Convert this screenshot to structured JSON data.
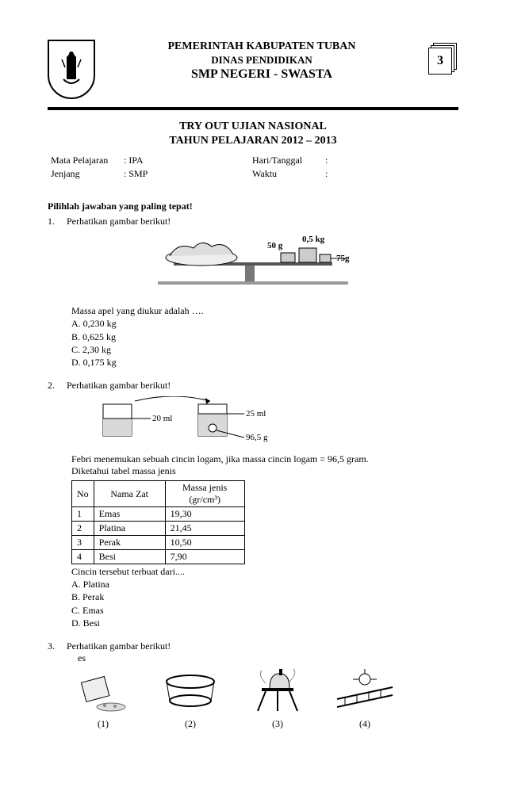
{
  "header": {
    "line1": "PEMERINTAH KABUPATEN TUBAN",
    "line2": "DINAS PENDIDIKAN",
    "line3": "SMP NEGERI - SWASTA",
    "page_number": "3"
  },
  "subheader": {
    "line1": "TRY OUT  UJIAN NASIONAL",
    "line2": "TAHUN PELAJARAN 2012 – 2013"
  },
  "meta": {
    "mata_pelajaran_label": "Mata Pelajaran",
    "mata_pelajaran_value": ": IPA",
    "jenjang_label": "Jenjang",
    "jenjang_value": ": SMP",
    "hari_label": "Hari/Tanggal",
    "hari_value": ":",
    "waktu_label": "Waktu",
    "waktu_value": ":"
  },
  "instruction": "Pilihlah jawaban yang paling tepat!",
  "q1": {
    "num": "1.",
    "text": "Perhatikan gambar berikut!",
    "fig": {
      "label_50g": "50 g",
      "label_05kg": "0,5 kg",
      "label_75g": "75g"
    },
    "prompt": "Massa apel yang diukur  adalah ….",
    "a": "A. 0,230 kg",
    "b": "B. 0,625 kg",
    "c": "C. 2,30 kg",
    "d": "D. 0,175 kg"
  },
  "q2": {
    "num": "2.",
    "text": "Perhatikan gambar berikut!",
    "fig": {
      "label_20ml": "20 ml",
      "label_25ml": "25 ml",
      "label_mass": "96,5 g"
    },
    "line1": "Febri menemukan sebuah cincin logam, jika massa cincin logam = 96,5 gram.",
    "line2": "Diketahui tabel massa jenis",
    "table": {
      "headers": [
        "No",
        "Nama Zat",
        "Massa jenis (gr/cm³)"
      ],
      "rows": [
        [
          "1",
          "Emas",
          "19,30"
        ],
        [
          "2",
          "Platina",
          "21,45"
        ],
        [
          "3",
          "Perak",
          "10,50"
        ],
        [
          "4",
          "Besi",
          "7,90"
        ]
      ]
    },
    "prompt": "Cincin tersebut terbuat dari....",
    "a": "A. Platina",
    "b": "B. Perak",
    "c": "C. Emas",
    "d": "D. Besi"
  },
  "q3": {
    "num": "3.",
    "text": "Perhatikan gambar berikut!",
    "es_label": "es",
    "sub1": "(1)",
    "sub2": "(2)",
    "sub3": "(3)",
    "sub4": "(4)"
  },
  "colors": {
    "text": "#000000",
    "background": "#ffffff",
    "rule": "#000000",
    "figure_fill": "#d9d9d9"
  }
}
